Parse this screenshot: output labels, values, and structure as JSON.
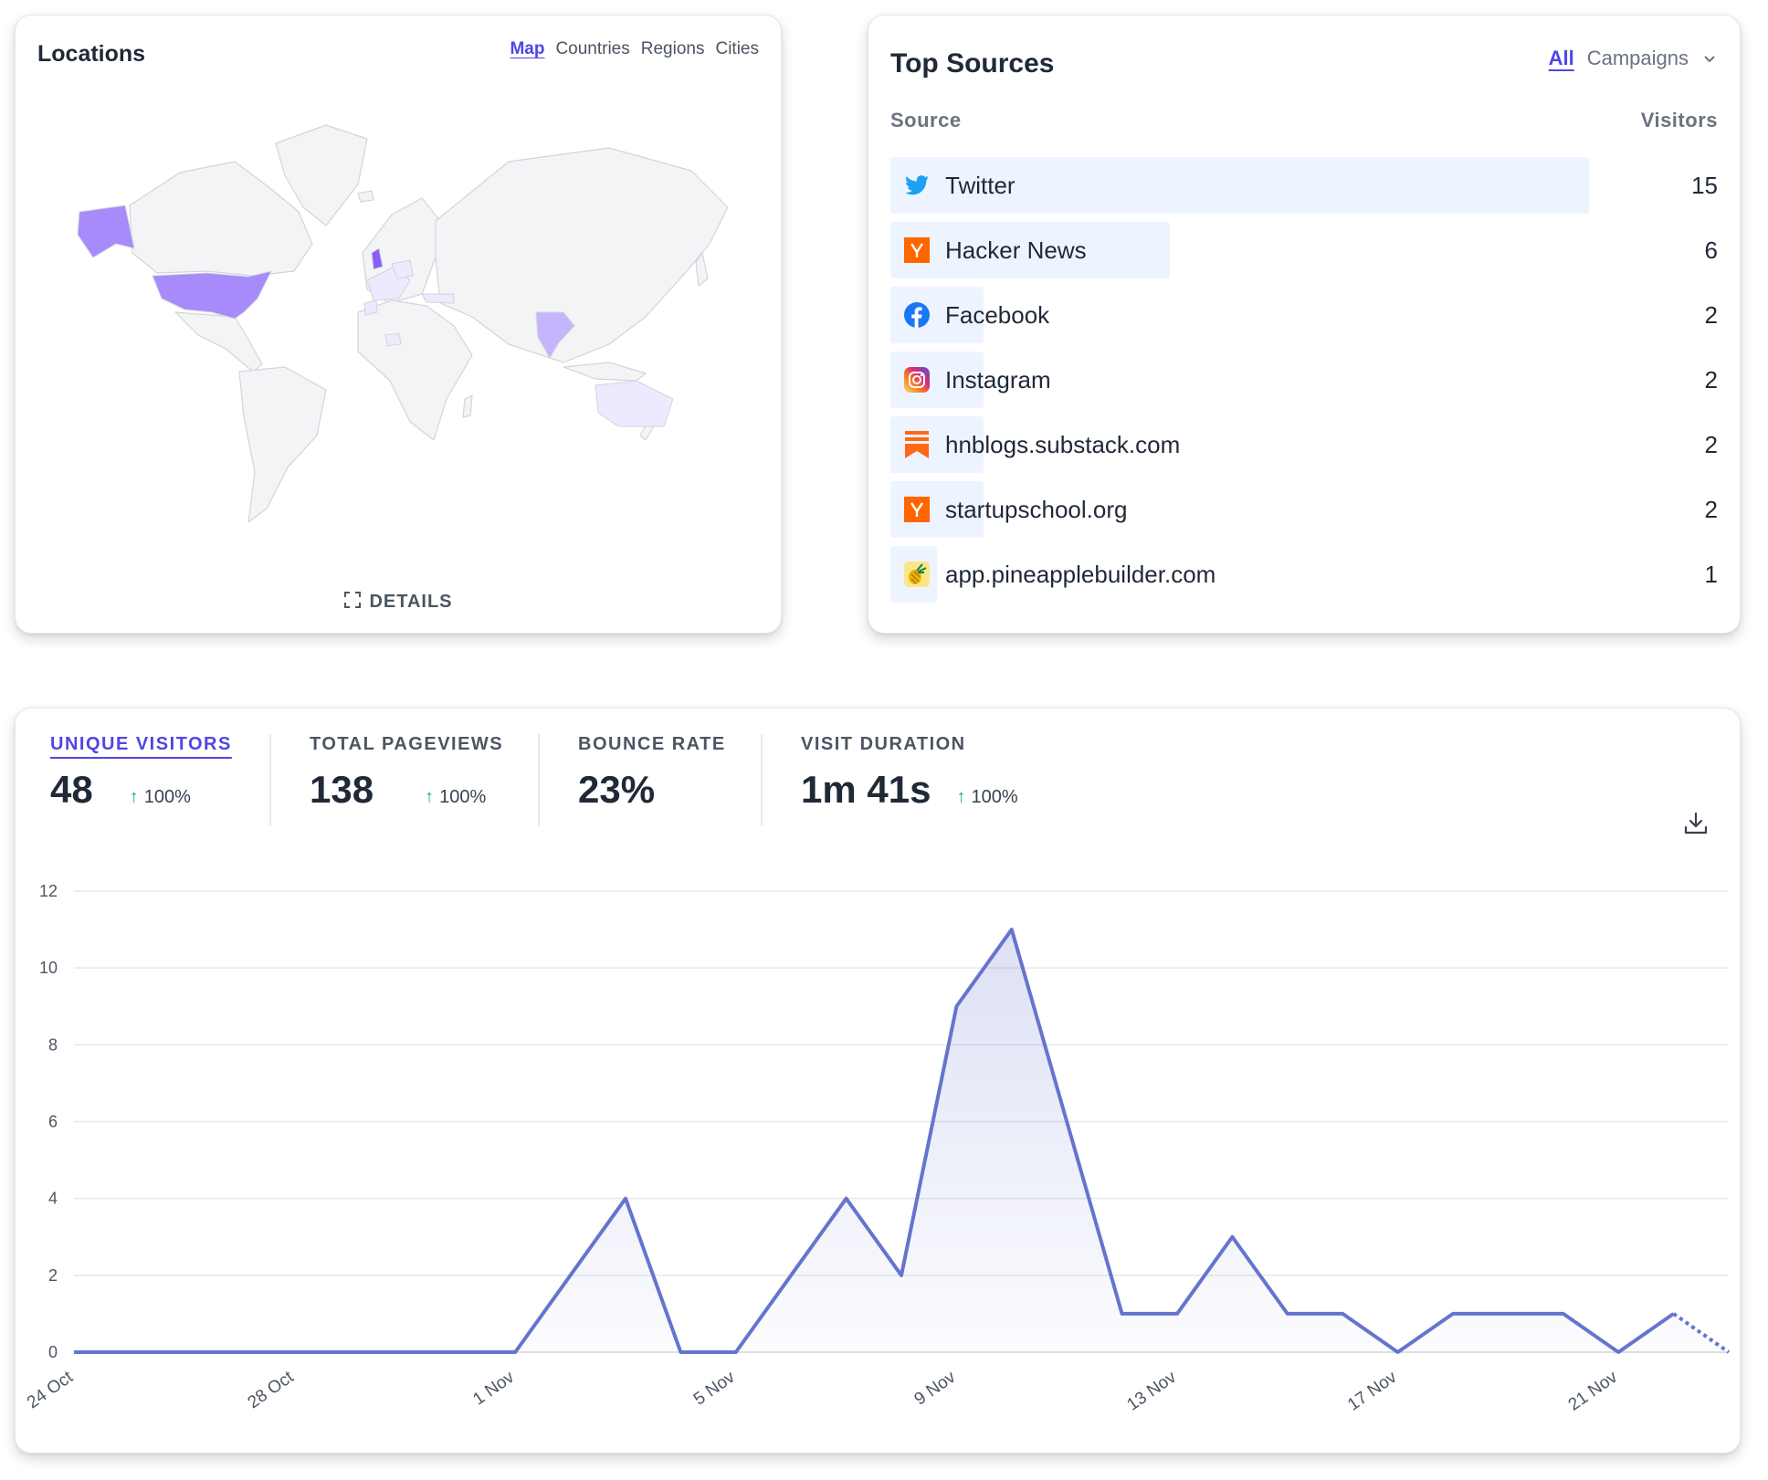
{
  "locations": {
    "title": "Locations",
    "tabs": [
      "Map",
      "Countries",
      "Regions",
      "Cities"
    ],
    "active_tab": "Map",
    "details_label": "DETAILS",
    "highlight_colors": {
      "strong": "#a78bfa",
      "medium": "#c4b5fd",
      "light": "#ede9fe",
      "base": "#f3f4f6"
    }
  },
  "top_sources": {
    "title": "Top Sources",
    "tabs": {
      "all": "All",
      "campaigns": "Campaigns"
    },
    "col_source": "Source",
    "col_visitors": "Visitors",
    "items": [
      {
        "name": "Twitter",
        "visitors": 15,
        "icon": "twitter-icon"
      },
      {
        "name": "Hacker News",
        "visitors": 6,
        "icon": "hacker-news-icon"
      },
      {
        "name": "Facebook",
        "visitors": 2,
        "icon": "facebook-icon"
      },
      {
        "name": "Instagram",
        "visitors": 2,
        "icon": "instagram-icon"
      },
      {
        "name": "hnblogs.substack.com",
        "visitors": 2,
        "icon": "substack-icon"
      },
      {
        "name": "startupschool.org",
        "visitors": 2,
        "icon": "startupschool-icon"
      },
      {
        "name": "app.pineapplebuilder.com",
        "visitors": 1,
        "icon": "pineapple-icon"
      }
    ]
  },
  "stats": {
    "unique_visitors": {
      "label": "UNIQUE VISITORS",
      "value": "48",
      "change": "100%"
    },
    "total_pageviews": {
      "label": "TOTAL PAGEVIEWS",
      "value": "138",
      "change": "100%"
    },
    "bounce_rate": {
      "label": "BOUNCE RATE",
      "value": "23%"
    },
    "visit_duration": {
      "label": "VISIT DURATION",
      "value": "1m 41s",
      "change": "100%"
    }
  },
  "chart_data": {
    "type": "area",
    "title": "",
    "xlabel": "",
    "ylabel": "",
    "ylim": [
      0,
      12
    ],
    "yticks": [
      0,
      2,
      4,
      6,
      8,
      10,
      12
    ],
    "x": [
      "24 Oct",
      "25 Oct",
      "26 Oct",
      "27 Oct",
      "28 Oct",
      "29 Oct",
      "30 Oct",
      "31 Oct",
      "1 Nov",
      "2 Nov",
      "3 Nov",
      "4 Nov",
      "5 Nov",
      "6 Nov",
      "7 Nov",
      "8 Nov",
      "9 Nov",
      "10 Nov",
      "11 Nov",
      "12 Nov",
      "13 Nov",
      "14 Nov",
      "15 Nov",
      "16 Nov",
      "17 Nov",
      "18 Nov",
      "19 Nov",
      "20 Nov",
      "21 Nov",
      "22 Nov",
      "23 Nov"
    ],
    "xtick_labels": [
      "24 Oct",
      "28 Oct",
      "1 Nov",
      "5 Nov",
      "9 Nov",
      "13 Nov",
      "17 Nov",
      "21 Nov"
    ],
    "series": [
      {
        "name": "Unique visitors",
        "values": [
          0,
          0,
          0,
          0,
          0,
          0,
          0,
          0,
          0,
          2,
          4,
          0,
          0,
          2,
          4,
          2,
          9,
          11,
          6,
          1,
          1,
          3,
          1,
          1,
          0,
          1,
          1,
          1,
          0,
          1,
          0
        ],
        "dashed_last_segment": true
      }
    ],
    "line_color": "#6574cd"
  }
}
